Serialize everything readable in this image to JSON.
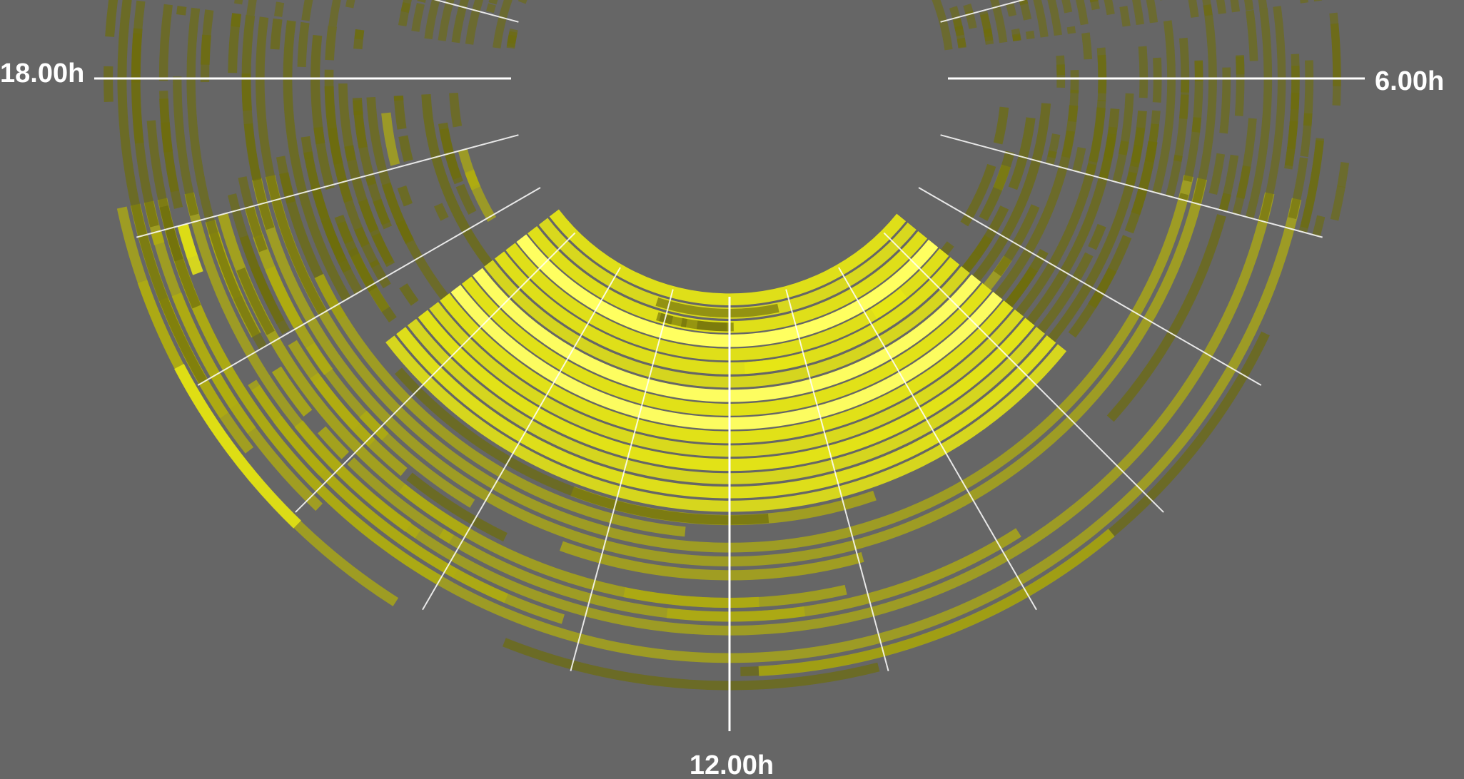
{
  "colors": {
    "background": "#666666",
    "ring": "#141414",
    "activity_low": "#6e6d0c",
    "activity_mid": "#b0ad10",
    "activity_high": "#e6e615",
    "activity_peak": "#ffff60",
    "spoke": "#ffffff"
  },
  "hour_labels": {
    "h18": "18.00h",
    "h6": "6.00h",
    "h12": "12.00h"
  },
  "chart_data": {
    "type": "radial-heatmap",
    "title": "",
    "angular_axis": "hour of day (24h clock, 12.00h at bottom, 6.00h at right, 18.00h at left)",
    "ring_count": 30,
    "hours_with_spokes": [
      6,
      7,
      8,
      9,
      10,
      11,
      12,
      13,
      14,
      15,
      16,
      17,
      18
    ],
    "grid": true,
    "activity_segments": [
      {
        "ring_start": 0,
        "ring_end": 16,
        "hour_start": 8.6,
        "hour_end": 15.5,
        "level": 0.85
      },
      {
        "ring_start": 1,
        "ring_end": 3,
        "hour_start": 11.2,
        "hour_end": 13.2,
        "level": 0.2
      },
      {
        "ring_start": 5,
        "ring_end": 6,
        "hour_start": 11.0,
        "hour_end": 11.8,
        "level": 1.0
      },
      {
        "ring_start": 4,
        "ring_end": 5,
        "hour_start": 9.4,
        "hour_end": 9.9,
        "level": 1.0
      },
      {
        "ring_start": 16,
        "ring_end": 30,
        "hour_start": 6.8,
        "hour_end": 17.2,
        "level": 0.45
      },
      {
        "ring_start": 20,
        "ring_end": 30,
        "hour_start": 14.0,
        "hour_end": 17.0,
        "level": 0.6
      },
      {
        "ring_start": 4,
        "ring_end": 16,
        "hour_start": 6.3,
        "hour_end": 8.6,
        "level": 0.35
      },
      {
        "ring_start": 4,
        "ring_end": 16,
        "hour_start": 15.5,
        "hour_end": 17.8,
        "level": 0.35
      },
      {
        "ring_start": 10,
        "ring_end": 30,
        "hour_start": 16.0,
        "hour_end": 18.5,
        "level": 0.3
      },
      {
        "ring_start": 8,
        "ring_end": 30,
        "hour_start": 5.5,
        "hour_end": 7.0,
        "level": 0.15
      },
      {
        "ring_start": 0,
        "ring_end": 30,
        "hour_start": 18.5,
        "hour_end": 19.5,
        "level": 0.12
      },
      {
        "ring_start": 0,
        "ring_end": 30,
        "hour_start": 4.5,
        "hour_end": 5.5,
        "level": 0.1
      }
    ]
  }
}
